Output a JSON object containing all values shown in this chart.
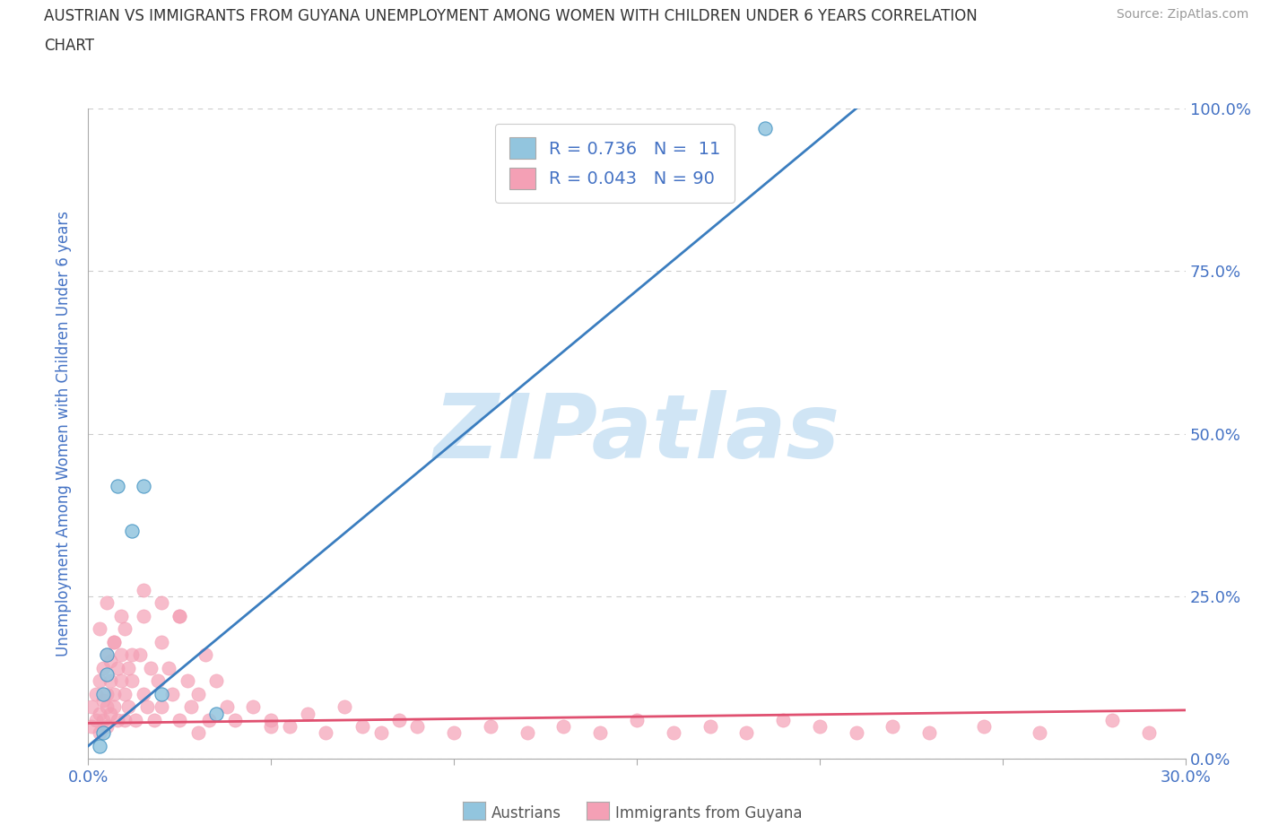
{
  "title_line1": "AUSTRIAN VS IMMIGRANTS FROM GUYANA UNEMPLOYMENT AMONG WOMEN WITH CHILDREN UNDER 6 YEARS CORRELATION",
  "title_line2": "CHART",
  "source_text": "Source: ZipAtlas.com",
  "ylabel": "Unemployment Among Women with Children Under 6 years",
  "xlim": [
    0.0,
    0.3
  ],
  "ylim": [
    0.0,
    1.0
  ],
  "xticks": [
    0.0,
    0.05,
    0.1,
    0.15,
    0.2,
    0.25,
    0.3
  ],
  "xticklabels": [
    "0.0%",
    "",
    "",
    "",
    "",
    "",
    "30.0%"
  ],
  "yticks": [
    0.0,
    0.25,
    0.5,
    0.75,
    1.0
  ],
  "yticklabels": [
    "0.0%",
    "25.0%",
    "50.0%",
    "75.0%",
    "100.0%"
  ],
  "austrians_R": 0.736,
  "austrians_N": 11,
  "guyana_R": 0.043,
  "guyana_N": 90,
  "austrians_color": "#92c5de",
  "austrians_edge_color": "#4393c3",
  "guyana_color": "#f4a0b5",
  "guyana_edge_color": "#d6537a",
  "austrians_line_color": "#3a7dbf",
  "guyana_line_color": "#e05070",
  "watermark": "ZIPatlas",
  "watermark_color": "#d0e5f5",
  "background_color": "#ffffff",
  "grid_color": "#cccccc",
  "title_color": "#333333",
  "axis_label_color": "#4472c4",
  "tick_color": "#4472c4",
  "legend_label1": "Austrians",
  "legend_label2": "Immigrants from Guyana",
  "austrians_x": [
    0.003,
    0.004,
    0.004,
    0.005,
    0.005,
    0.008,
    0.012,
    0.015,
    0.02,
    0.035,
    0.185
  ],
  "austrians_y": [
    0.02,
    0.04,
    0.1,
    0.13,
    0.16,
    0.42,
    0.35,
    0.42,
    0.1,
    0.07,
    0.97
  ],
  "guyana_x": [
    0.001,
    0.001,
    0.002,
    0.002,
    0.003,
    0.003,
    0.003,
    0.004,
    0.004,
    0.004,
    0.005,
    0.005,
    0.005,
    0.005,
    0.006,
    0.006,
    0.006,
    0.007,
    0.007,
    0.007,
    0.008,
    0.008,
    0.009,
    0.009,
    0.01,
    0.01,
    0.01,
    0.011,
    0.011,
    0.012,
    0.013,
    0.014,
    0.015,
    0.015,
    0.016,
    0.017,
    0.018,
    0.019,
    0.02,
    0.02,
    0.022,
    0.023,
    0.025,
    0.025,
    0.027,
    0.028,
    0.03,
    0.032,
    0.033,
    0.035,
    0.038,
    0.04,
    0.045,
    0.05,
    0.055,
    0.06,
    0.065,
    0.07,
    0.075,
    0.08,
    0.085,
    0.09,
    0.1,
    0.11,
    0.12,
    0.13,
    0.14,
    0.15,
    0.16,
    0.17,
    0.18,
    0.19,
    0.2,
    0.21,
    0.22,
    0.23,
    0.245,
    0.26,
    0.28,
    0.29,
    0.003,
    0.005,
    0.007,
    0.009,
    0.012,
    0.015,
    0.02,
    0.025,
    0.03,
    0.05
  ],
  "guyana_y": [
    0.05,
    0.08,
    0.06,
    0.1,
    0.04,
    0.07,
    0.12,
    0.09,
    0.14,
    0.06,
    0.1,
    0.16,
    0.08,
    0.05,
    0.12,
    0.07,
    0.15,
    0.1,
    0.18,
    0.08,
    0.14,
    0.06,
    0.12,
    0.16,
    0.1,
    0.2,
    0.06,
    0.14,
    0.08,
    0.12,
    0.06,
    0.16,
    0.1,
    0.22,
    0.08,
    0.14,
    0.06,
    0.12,
    0.18,
    0.08,
    0.14,
    0.1,
    0.22,
    0.06,
    0.12,
    0.08,
    0.04,
    0.16,
    0.06,
    0.12,
    0.08,
    0.06,
    0.08,
    0.06,
    0.05,
    0.07,
    0.04,
    0.08,
    0.05,
    0.04,
    0.06,
    0.05,
    0.04,
    0.05,
    0.04,
    0.05,
    0.04,
    0.06,
    0.04,
    0.05,
    0.04,
    0.06,
    0.05,
    0.04,
    0.05,
    0.04,
    0.05,
    0.04,
    0.06,
    0.04,
    0.2,
    0.24,
    0.18,
    0.22,
    0.16,
    0.26,
    0.24,
    0.22,
    0.1,
    0.05
  ],
  "austrians_trendline_x0": 0.0,
  "austrians_trendline_y0": 0.02,
  "austrians_trendline_x1": 0.21,
  "austrians_trendline_y1": 1.0,
  "guyana_trendline_x0": 0.0,
  "guyana_trendline_y0": 0.055,
  "guyana_trendline_x1": 0.3,
  "guyana_trendline_y1": 0.075
}
